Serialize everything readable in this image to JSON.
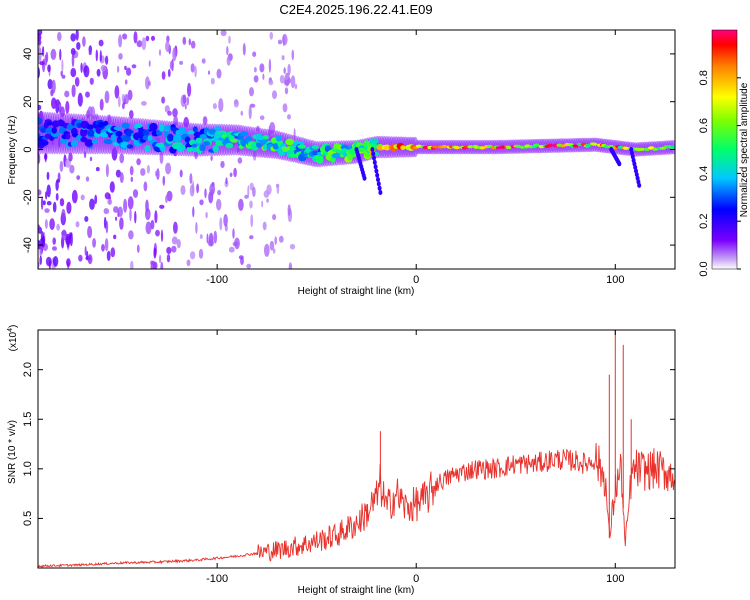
{
  "title": "C2E4.2025.196.22.41.E09",
  "chart_data": [
    {
      "type": "heatmap",
      "xlabel": "Height of straight line (km)",
      "ylabel": "Frequency (Hz)",
      "xlim": [
        -190,
        130
      ],
      "ylim": [
        -50,
        50
      ],
      "x_ticks": [
        -100,
        0,
        100
      ],
      "y_ticks": [
        -40,
        -20,
        0,
        20,
        40
      ],
      "colorbar": {
        "label": "Normalized spectral amplitude",
        "range": [
          0,
          1
        ],
        "ticks": [
          "0.0",
          "0.2",
          "0.4",
          "0.6",
          "0.8"
        ],
        "colormap": "rainbow"
      },
      "ridge": {
        "x": [
          -190,
          -150,
          -110,
          -90,
          -70,
          -50,
          -30,
          -20,
          0,
          40,
          90,
          100,
          110,
          130
        ],
        "frequency": [
          7,
          6,
          4,
          4,
          2,
          -2,
          -1,
          1,
          1,
          1,
          2,
          1,
          0,
          1
        ],
        "amplitude": [
          0.3,
          0.35,
          0.4,
          0.5,
          0.55,
          0.5,
          0.6,
          0.75,
          0.9,
          0.95,
          0.85,
          0.9,
          0.7,
          0.6
        ]
      },
      "colors": {
        "low": "#7b00ff",
        "high": "#ff0000"
      }
    },
    {
      "type": "line",
      "xlabel": "Height of straight line (km)",
      "ylabel": "SNR (10 * v/v)",
      "y_multiplier": "(x10",
      "y_multiplier_exp": "4",
      "y_multiplier_close": ")",
      "xlim": [
        -190,
        130
      ],
      "ylim": [
        0,
        2.4
      ],
      "x_ticks": [
        -100,
        0,
        100
      ],
      "y_ticks": [
        "0.5",
        "1.0",
        "1.5",
        "2.0"
      ],
      "series": [
        {
          "color": "#e8312b",
          "x": [
            -190,
            -170,
            -150,
            -130,
            -110,
            -100,
            -90,
            -80,
            -70,
            -60,
            -50,
            -40,
            -30,
            -25,
            -20,
            -18,
            -15,
            -10,
            -5,
            0,
            5,
            10,
            15,
            20,
            30,
            40,
            50,
            60,
            70,
            80,
            85,
            90,
            95,
            97,
            100,
            103,
            105,
            108,
            110,
            115,
            120,
            125,
            130
          ],
          "y": [
            0.02,
            0.03,
            0.05,
            0.06,
            0.08,
            0.1,
            0.12,
            0.15,
            0.18,
            0.22,
            0.27,
            0.33,
            0.45,
            0.55,
            0.7,
            0.85,
            0.6,
            0.75,
            0.6,
            0.65,
            0.7,
            0.85,
            0.9,
            0.95,
            1.0,
            1.0,
            1.05,
            1.05,
            1.1,
            1.08,
            1.05,
            1.1,
            0.9,
            0.3,
            0.8,
            1.0,
            0.2,
            0.9,
            1.0,
            0.98,
            1.0,
            0.97,
            0.93
          ]
        }
      ],
      "spikes": [
        {
          "x": -18,
          "y": 1.38
        },
        {
          "x": 97,
          "y": 1.95
        },
        {
          "x": 100,
          "y": 2.4
        },
        {
          "x": 104,
          "y": 2.25
        },
        {
          "x": 108,
          "y": 1.5
        }
      ]
    }
  ]
}
